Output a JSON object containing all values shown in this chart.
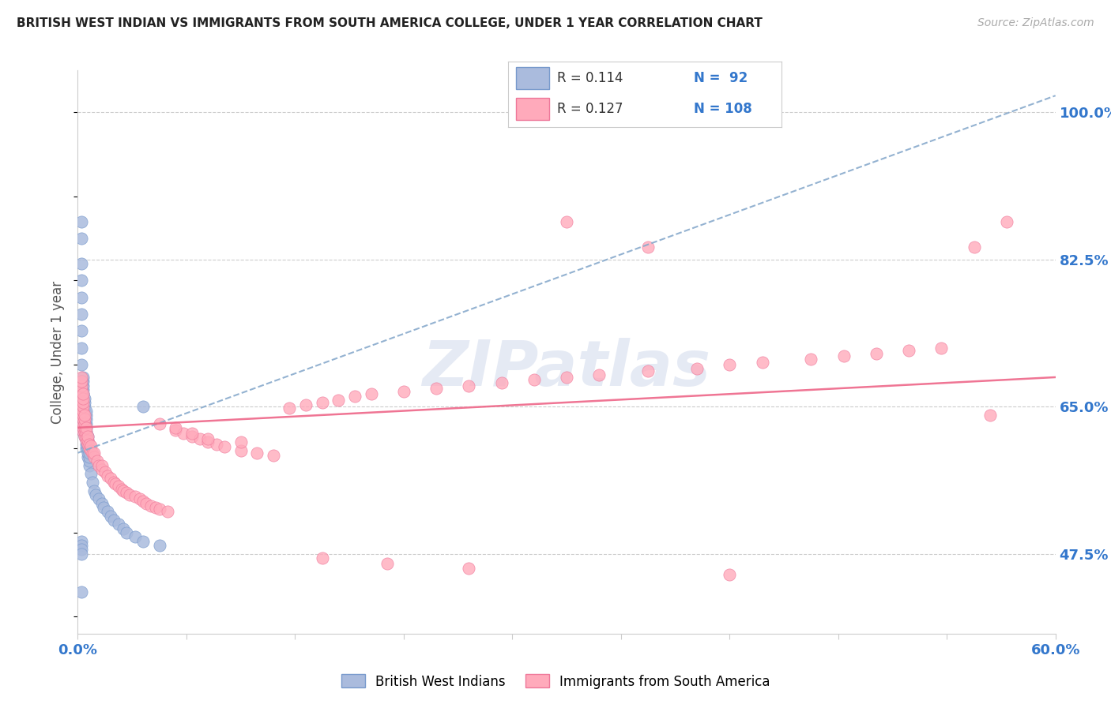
{
  "title": "BRITISH WEST INDIAN VS IMMIGRANTS FROM SOUTH AMERICA COLLEGE, UNDER 1 YEAR CORRELATION CHART",
  "source": "Source: ZipAtlas.com",
  "ylabel": "College, Under 1 year",
  "ytick_labels": [
    "100.0%",
    "82.5%",
    "65.0%",
    "47.5%"
  ],
  "ytick_values": [
    1.0,
    0.825,
    0.65,
    0.475
  ],
  "title_color": "#222222",
  "source_color": "#aaaaaa",
  "blue_color": "#aabbdd",
  "blue_color_dark": "#7799cc",
  "pink_color": "#ffaabb",
  "pink_color_dark": "#ee7799",
  "blue_line_color": "#88aacc",
  "pink_line_color": "#ee6688",
  "axis_label_color": "#3377cc",
  "legend_r1": "R = 0.114",
  "legend_n1": "N =  92",
  "legend_r2": "R = 0.127",
  "legend_n2": "N = 108",
  "xmin": 0.0,
  "xmax": 0.6,
  "ymin": 0.38,
  "ymax": 1.05,
  "blue_trend_x": [
    0.0,
    0.6
  ],
  "blue_trend_y": [
    0.595,
    1.02
  ],
  "pink_trend_x": [
    0.0,
    0.6
  ],
  "pink_trend_y": [
    0.625,
    0.685
  ],
  "watermark": "ZIPatlas",
  "watermark_color": "#aabbdd",
  "blue_scatter_x": [
    0.002,
    0.002,
    0.002,
    0.002,
    0.002,
    0.002,
    0.002,
    0.002,
    0.002,
    0.002,
    0.003,
    0.003,
    0.003,
    0.003,
    0.003,
    0.003,
    0.003,
    0.003,
    0.003,
    0.003,
    0.003,
    0.003,
    0.003,
    0.003,
    0.003,
    0.003,
    0.003,
    0.003,
    0.003,
    0.003,
    0.004,
    0.004,
    0.004,
    0.004,
    0.004,
    0.004,
    0.004,
    0.004,
    0.004,
    0.004,
    0.005,
    0.005,
    0.005,
    0.005,
    0.005,
    0.005,
    0.005,
    0.005,
    0.005,
    0.005,
    0.006,
    0.006,
    0.006,
    0.006,
    0.006,
    0.006,
    0.007,
    0.007,
    0.007,
    0.007,
    0.008,
    0.009,
    0.01,
    0.011,
    0.013,
    0.015,
    0.016,
    0.018,
    0.02,
    0.022,
    0.025,
    0.028,
    0.03,
    0.035,
    0.04,
    0.05,
    0.002,
    0.002,
    0.002,
    0.002,
    0.002,
    0.002,
    0.002,
    0.002,
    0.002,
    0.002,
    0.002,
    0.002,
    0.002,
    0.002,
    0.002,
    0.04
  ],
  "blue_scatter_y": [
    0.64,
    0.645,
    0.645,
    0.65,
    0.65,
    0.655,
    0.655,
    0.66,
    0.66,
    0.665,
    0.62,
    0.625,
    0.63,
    0.63,
    0.635,
    0.635,
    0.64,
    0.64,
    0.645,
    0.645,
    0.65,
    0.655,
    0.66,
    0.66,
    0.665,
    0.665,
    0.67,
    0.675,
    0.68,
    0.685,
    0.615,
    0.62,
    0.625,
    0.63,
    0.635,
    0.64,
    0.645,
    0.65,
    0.655,
    0.66,
    0.6,
    0.605,
    0.61,
    0.615,
    0.62,
    0.625,
    0.63,
    0.635,
    0.64,
    0.645,
    0.59,
    0.595,
    0.6,
    0.605,
    0.61,
    0.615,
    0.58,
    0.585,
    0.59,
    0.595,
    0.57,
    0.56,
    0.55,
    0.545,
    0.54,
    0.535,
    0.53,
    0.525,
    0.52,
    0.515,
    0.51,
    0.505,
    0.5,
    0.495,
    0.49,
    0.485,
    0.85,
    0.87,
    0.82,
    0.8,
    0.78,
    0.76,
    0.74,
    0.72,
    0.7,
    0.68,
    0.49,
    0.485,
    0.48,
    0.475,
    0.43,
    0.65
  ],
  "pink_scatter_x": [
    0.002,
    0.002,
    0.002,
    0.002,
    0.002,
    0.002,
    0.002,
    0.002,
    0.002,
    0.002,
    0.003,
    0.003,
    0.003,
    0.003,
    0.003,
    0.003,
    0.003,
    0.003,
    0.003,
    0.003,
    0.004,
    0.004,
    0.004,
    0.004,
    0.004,
    0.004,
    0.005,
    0.005,
    0.005,
    0.005,
    0.006,
    0.006,
    0.006,
    0.007,
    0.007,
    0.008,
    0.008,
    0.009,
    0.01,
    0.01,
    0.012,
    0.013,
    0.015,
    0.015,
    0.017,
    0.018,
    0.02,
    0.022,
    0.023,
    0.025,
    0.027,
    0.028,
    0.03,
    0.032,
    0.035,
    0.038,
    0.04,
    0.042,
    0.045,
    0.048,
    0.05,
    0.055,
    0.06,
    0.065,
    0.07,
    0.075,
    0.08,
    0.085,
    0.09,
    0.1,
    0.11,
    0.12,
    0.13,
    0.14,
    0.15,
    0.16,
    0.17,
    0.18,
    0.2,
    0.22,
    0.24,
    0.26,
    0.28,
    0.3,
    0.32,
    0.35,
    0.38,
    0.4,
    0.42,
    0.45,
    0.47,
    0.49,
    0.51,
    0.53,
    0.55,
    0.57,
    0.3,
    0.35,
    0.05,
    0.06,
    0.07,
    0.08,
    0.1,
    0.15,
    0.19,
    0.24,
    0.4,
    0.56
  ],
  "pink_scatter_y": [
    0.64,
    0.645,
    0.65,
    0.655,
    0.66,
    0.665,
    0.67,
    0.675,
    0.68,
    0.685,
    0.62,
    0.625,
    0.63,
    0.635,
    0.64,
    0.645,
    0.65,
    0.655,
    0.66,
    0.665,
    0.615,
    0.62,
    0.625,
    0.63,
    0.635,
    0.64,
    0.61,
    0.615,
    0.62,
    0.625,
    0.605,
    0.61,
    0.615,
    0.6,
    0.605,
    0.598,
    0.603,
    0.595,
    0.59,
    0.595,
    0.585,
    0.58,
    0.575,
    0.58,
    0.572,
    0.568,
    0.565,
    0.56,
    0.558,
    0.555,
    0.552,
    0.55,
    0.548,
    0.545,
    0.543,
    0.54,
    0.538,
    0.535,
    0.532,
    0.53,
    0.528,
    0.525,
    0.622,
    0.618,
    0.615,
    0.612,
    0.608,
    0.605,
    0.602,
    0.598,
    0.595,
    0.592,
    0.648,
    0.652,
    0.655,
    0.658,
    0.662,
    0.665,
    0.668,
    0.672,
    0.675,
    0.678,
    0.682,
    0.685,
    0.688,
    0.692,
    0.695,
    0.7,
    0.703,
    0.707,
    0.71,
    0.713,
    0.717,
    0.72,
    0.84,
    0.87,
    0.87,
    0.84,
    0.63,
    0.625,
    0.618,
    0.612,
    0.608,
    0.47,
    0.463,
    0.458,
    0.45,
    0.64
  ]
}
